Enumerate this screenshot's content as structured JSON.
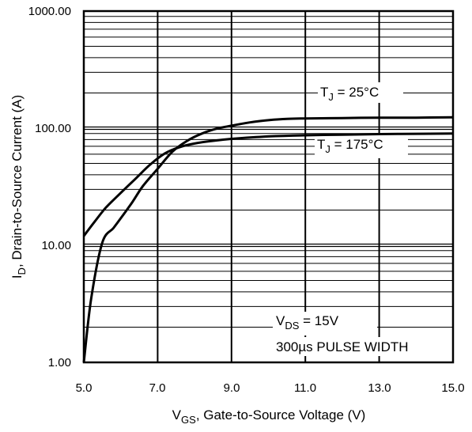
{
  "chart_data": {
    "type": "line",
    "title": "",
    "xlabel": {
      "main": "V",
      "sub": "GS",
      "rest": ", Gate-to-Source Voltage (V)"
    },
    "ylabel": {
      "main": "I",
      "sub": "D",
      "rest": ", Drain-to-Source Current  (A)"
    },
    "xlim": [
      5.0,
      15.0
    ],
    "ylim": [
      1.0,
      1000.0
    ],
    "y_scale": "log",
    "grid": true,
    "x_ticks": [
      "5.0",
      "7.0",
      "9.0",
      "11.0",
      "13.0",
      "15.0"
    ],
    "y_ticks": [
      "1.00",
      "10.00",
      "100.00",
      "1000.00"
    ],
    "series": [
      {
        "name": "25°C",
        "x": [
          5.0,
          5.2,
          5.5,
          5.8,
          6.0,
          6.3,
          6.6,
          7.0,
          7.4,
          7.8,
          8.2,
          8.6,
          9.0,
          9.5,
          10.0,
          10.5,
          11.0,
          12.0,
          13.0,
          14.0,
          15.0
        ],
        "y": [
          1.0,
          3.5,
          10.5,
          14.0,
          17.0,
          23.0,
          32.0,
          45.0,
          63.0,
          78.0,
          90.0,
          99.0,
          105.0,
          112.0,
          117.0,
          120.0,
          121.0,
          122.0,
          123.0,
          123.0,
          124.0
        ]
      },
      {
        "name": "175°C",
        "x": [
          5.0,
          5.3,
          5.6,
          6.0,
          6.4,
          6.8,
          7.2,
          7.6,
          8.0,
          8.5,
          9.0,
          10.0,
          11.0,
          12.0,
          13.0,
          14.0,
          15.0
        ],
        "y": [
          12.0,
          16.0,
          21.0,
          28.0,
          37.0,
          49.0,
          61.0,
          69.0,
          74.0,
          78.0,
          81.0,
          85.0,
          87.0,
          88.0,
          89.0,
          89.5,
          90.0
        ]
      }
    ],
    "annotations": {
      "tj25": {
        "main": "T",
        "sub": "J",
        "rest": " = 25°C"
      },
      "tj175": {
        "main": "T",
        "sub": "J",
        "rest": " = 175°C"
      },
      "vds": {
        "main": "V",
        "sub": "DS",
        "rest": " = 15V"
      },
      "pulse": "300µs PULSE WIDTH"
    }
  }
}
